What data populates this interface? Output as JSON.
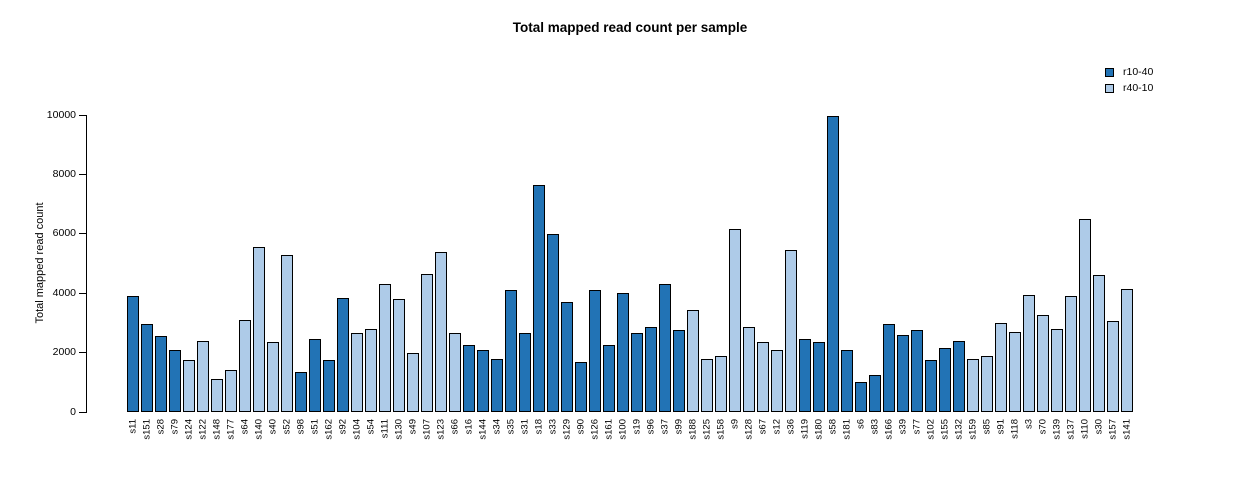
{
  "chart_data": {
    "type": "bar",
    "title": "Total mapped read count per sample",
    "xlabel": "",
    "ylabel": "Total mapped read count",
    "ylim": [
      0,
      10000
    ],
    "yticks": [
      0,
      2000,
      4000,
      6000,
      8000,
      10000
    ],
    "grid": false,
    "legend_position": "top-right",
    "legend": [
      {
        "name": "r10-40",
        "color": "#2273B5"
      },
      {
        "name": "r40-10",
        "color": "#AECBE8"
      }
    ],
    "bar_border_color": "#000000",
    "bars": [
      {
        "label": "s11",
        "value": 3900,
        "group": "r10-40"
      },
      {
        "label": "s151",
        "value": 2950,
        "group": "r10-40"
      },
      {
        "label": "s28",
        "value": 2550,
        "group": "r10-40"
      },
      {
        "label": "s79",
        "value": 2100,
        "group": "r10-40"
      },
      {
        "label": "s124",
        "value": 1750,
        "group": "r40-10"
      },
      {
        "label": "s122",
        "value": 2400,
        "group": "r40-10"
      },
      {
        "label": "s148",
        "value": 1100,
        "group": "r40-10"
      },
      {
        "label": "s177",
        "value": 1400,
        "group": "r40-10"
      },
      {
        "label": "s64",
        "value": 3100,
        "group": "r40-10"
      },
      {
        "label": "s140",
        "value": 5550,
        "group": "r40-10"
      },
      {
        "label": "s40",
        "value": 2350,
        "group": "r40-10"
      },
      {
        "label": "s52",
        "value": 5300,
        "group": "r40-10"
      },
      {
        "label": "s98",
        "value": 1350,
        "group": "r10-40"
      },
      {
        "label": "s51",
        "value": 2450,
        "group": "r10-40"
      },
      {
        "label": "s162",
        "value": 1750,
        "group": "r10-40"
      },
      {
        "label": "s92",
        "value": 3850,
        "group": "r10-40"
      },
      {
        "label": "s104",
        "value": 2650,
        "group": "r40-10"
      },
      {
        "label": "s54",
        "value": 2800,
        "group": "r40-10"
      },
      {
        "label": "s111",
        "value": 4300,
        "group": "r40-10"
      },
      {
        "label": "s130",
        "value": 3800,
        "group": "r40-10"
      },
      {
        "label": "s49",
        "value": 2000,
        "group": "r40-10"
      },
      {
        "label": "s107",
        "value": 4650,
        "group": "r40-10"
      },
      {
        "label": "s123",
        "value": 5400,
        "group": "r40-10"
      },
      {
        "label": "s66",
        "value": 2650,
        "group": "r40-10"
      },
      {
        "label": "s16",
        "value": 2250,
        "group": "r10-40"
      },
      {
        "label": "s144",
        "value": 2100,
        "group": "r10-40"
      },
      {
        "label": "s34",
        "value": 1800,
        "group": "r10-40"
      },
      {
        "label": "s35",
        "value": 4100,
        "group": "r10-40"
      },
      {
        "label": "s31",
        "value": 2650,
        "group": "r10-40"
      },
      {
        "label": "s18",
        "value": 7650,
        "group": "r10-40"
      },
      {
        "label": "s33",
        "value": 6000,
        "group": "r10-40"
      },
      {
        "label": "s129",
        "value": 3700,
        "group": "r10-40"
      },
      {
        "label": "s90",
        "value": 1700,
        "group": "r10-40"
      },
      {
        "label": "s126",
        "value": 4100,
        "group": "r10-40"
      },
      {
        "label": "s161",
        "value": 2250,
        "group": "r10-40"
      },
      {
        "label": "s100",
        "value": 4000,
        "group": "r10-40"
      },
      {
        "label": "s19",
        "value": 2650,
        "group": "r10-40"
      },
      {
        "label": "s96",
        "value": 2850,
        "group": "r10-40"
      },
      {
        "label": "s37",
        "value": 4300,
        "group": "r10-40"
      },
      {
        "label": "s99",
        "value": 2750,
        "group": "r10-40"
      },
      {
        "label": "s188",
        "value": 3450,
        "group": "r40-10"
      },
      {
        "label": "s125",
        "value": 1800,
        "group": "r40-10"
      },
      {
        "label": "s158",
        "value": 1900,
        "group": "r40-10"
      },
      {
        "label": "s9",
        "value": 6150,
        "group": "r40-10"
      },
      {
        "label": "s128",
        "value": 2850,
        "group": "r40-10"
      },
      {
        "label": "s67",
        "value": 2350,
        "group": "r40-10"
      },
      {
        "label": "s12",
        "value": 2100,
        "group": "r40-10"
      },
      {
        "label": "s36",
        "value": 5450,
        "group": "r40-10"
      },
      {
        "label": "s119",
        "value": 2450,
        "group": "r10-40"
      },
      {
        "label": "s180",
        "value": 2350,
        "group": "r10-40"
      },
      {
        "label": "s58",
        "value": 9950,
        "group": "r10-40"
      },
      {
        "label": "s181",
        "value": 2100,
        "group": "r10-40"
      },
      {
        "label": "s6",
        "value": 1000,
        "group": "r10-40"
      },
      {
        "label": "s83",
        "value": 1250,
        "group": "r10-40"
      },
      {
        "label": "s166",
        "value": 2950,
        "group": "r10-40"
      },
      {
        "label": "s39",
        "value": 2600,
        "group": "r10-40"
      },
      {
        "label": "s77",
        "value": 2750,
        "group": "r10-40"
      },
      {
        "label": "s102",
        "value": 1750,
        "group": "r10-40"
      },
      {
        "label": "s155",
        "value": 2150,
        "group": "r10-40"
      },
      {
        "label": "s132",
        "value": 2400,
        "group": "r10-40"
      },
      {
        "label": "s159",
        "value": 1800,
        "group": "r40-10"
      },
      {
        "label": "s85",
        "value": 1900,
        "group": "r40-10"
      },
      {
        "label": "s91",
        "value": 3000,
        "group": "r40-10"
      },
      {
        "label": "s118",
        "value": 2700,
        "group": "r40-10"
      },
      {
        "label": "s3",
        "value": 3950,
        "group": "r40-10"
      },
      {
        "label": "s70",
        "value": 3250,
        "group": "r40-10"
      },
      {
        "label": "s139",
        "value": 2800,
        "group": "r40-10"
      },
      {
        "label": "s137",
        "value": 3900,
        "group": "r40-10"
      },
      {
        "label": "s110",
        "value": 6500,
        "group": "r40-10"
      },
      {
        "label": "s30",
        "value": 4600,
        "group": "r40-10"
      },
      {
        "label": "s157",
        "value": 3050,
        "group": "r40-10"
      },
      {
        "label": "s141",
        "value": 4150,
        "group": "r40-10"
      }
    ]
  }
}
